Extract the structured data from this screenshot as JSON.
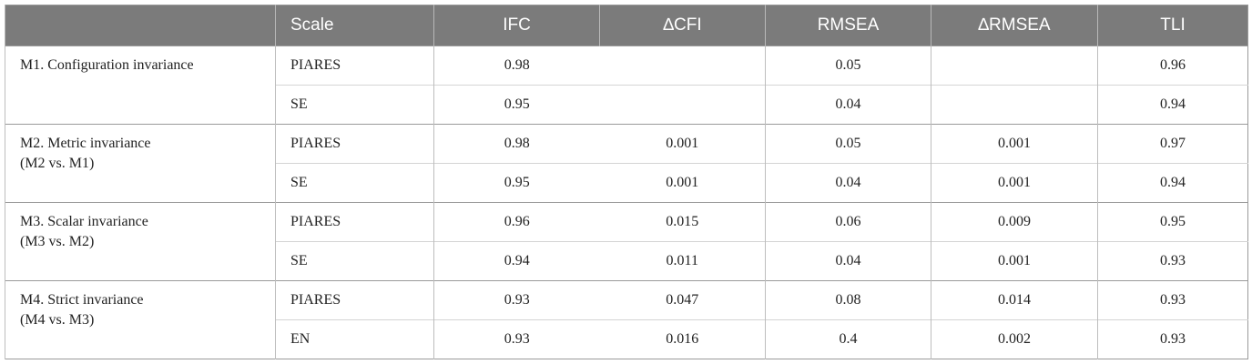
{
  "table": {
    "columns": [
      "Scale",
      "IFC",
      "∆CFI",
      "RMSEA",
      "∆RMSEA",
      "TLI"
    ],
    "groups": [
      {
        "label": [
          "M1. Configuration invariance"
        ],
        "rows": [
          [
            "PIARES",
            "0.98",
            null,
            "0.05",
            null,
            "0.96"
          ],
          [
            "SE",
            "0.95",
            null,
            "0.04",
            null,
            "0.94"
          ]
        ]
      },
      {
        "label": [
          "M2. Metric invariance",
          "(M2 vs. M1)"
        ],
        "rows": [
          [
            "PIARES",
            "0.98",
            "0.001",
            "0.05",
            "0.001",
            "0.97"
          ],
          [
            "SE",
            "0.95",
            "0.001",
            "0.04",
            "0.001",
            "0.94"
          ]
        ]
      },
      {
        "label": [
          "M3. Scalar invariance",
          "(M3 vs. M2)"
        ],
        "rows": [
          [
            "PIARES",
            "0.96",
            "0.015",
            "0.06",
            "0.009",
            "0.95"
          ],
          [
            "SE",
            "0.94",
            "0.011",
            "0.04",
            "0.001",
            "0.93"
          ]
        ]
      },
      {
        "label": [
          "M4. Strict invariance",
          "(M4 vs. M3)"
        ],
        "rows": [
          [
            "PIARES",
            "0.93",
            "0.047",
            "0.08",
            "0.014",
            "0.93"
          ],
          [
            "EN",
            "0.93",
            "0.016",
            "0.4",
            "0.002",
            "0.93"
          ]
        ]
      }
    ]
  }
}
